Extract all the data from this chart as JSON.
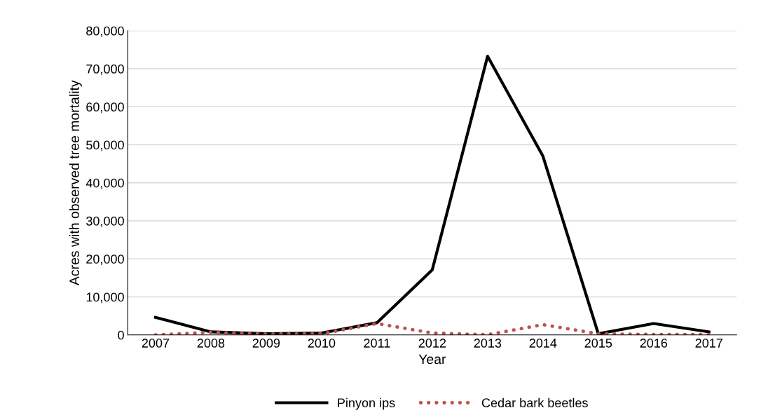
{
  "chart_data": {
    "type": "line",
    "xlabel": "Year",
    "ylabel": "Acres with observed tree mortality",
    "categories": [
      "2007",
      "2008",
      "2009",
      "2010",
      "2011",
      "2012",
      "2013",
      "2014",
      "2015",
      "2016",
      "2017"
    ],
    "series": [
      {
        "name": "Pinyon ips",
        "color": "#000000",
        "line_style": "solid",
        "values": [
          4600,
          800,
          300,
          500,
          3200,
          17100,
          73300,
          47000,
          300,
          3000,
          800
        ]
      },
      {
        "name": "Cedar bark beetles",
        "color": "#c0504d",
        "line_style": "dotted",
        "values": [
          0,
          700,
          200,
          300,
          3000,
          500,
          50,
          2700,
          300,
          100,
          100
        ]
      }
    ],
    "ylim": [
      0,
      80000
    ],
    "yticks": [
      {
        "value": 0,
        "label": "0"
      },
      {
        "value": 10000,
        "label": "10,000"
      },
      {
        "value": 20000,
        "label": "20,000"
      },
      {
        "value": 30000,
        "label": "30,000"
      },
      {
        "value": 40000,
        "label": "40,000"
      },
      {
        "value": 50000,
        "label": "50,000"
      },
      {
        "value": 60000,
        "label": "60,000"
      },
      {
        "value": 70000,
        "label": "70,000"
      },
      {
        "value": 80000,
        "label": "80,000"
      }
    ],
    "grid": "y",
    "legend": "bottom",
    "marker": "none"
  }
}
